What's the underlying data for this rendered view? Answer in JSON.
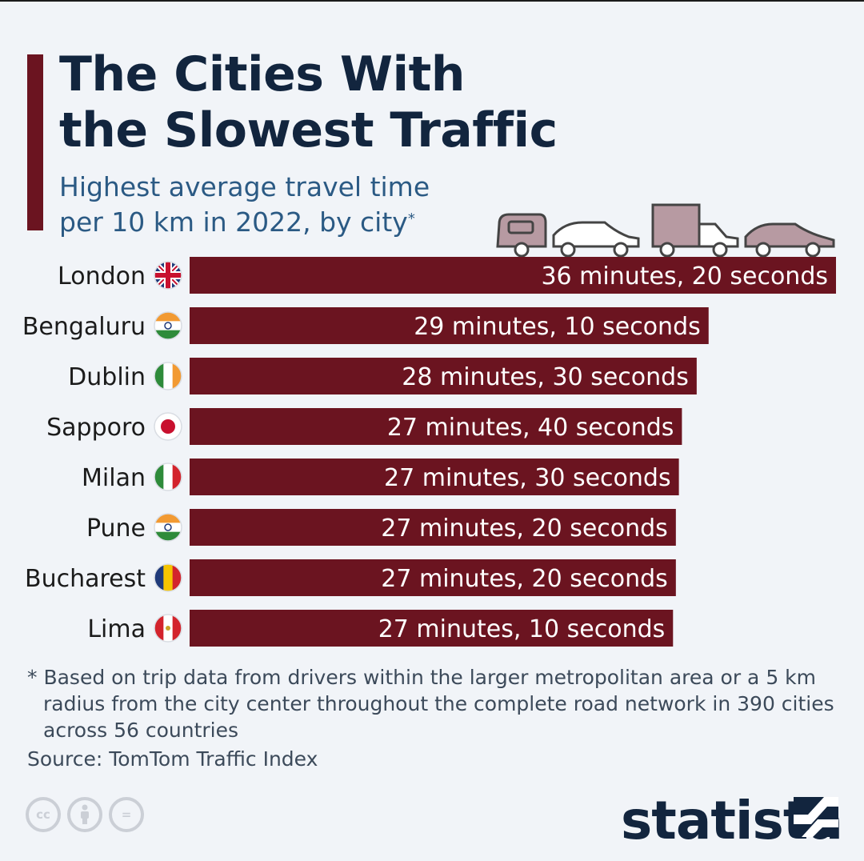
{
  "title": "The Cities With\nthe Slowest Traffic",
  "subtitle": "Highest average travel time per 10 km in 2022, by city",
  "subtitle_marker": "*",
  "chart_data": {
    "type": "bar",
    "orientation": "horizontal",
    "categories": [
      "London",
      "Bengaluru",
      "Dublin",
      "Sapporo",
      "Milan",
      "Pune",
      "Bucharest",
      "Lima"
    ],
    "values": [
      36.33,
      29.17,
      28.5,
      27.67,
      27.5,
      27.33,
      27.33,
      27.17
    ],
    "value_labels": [
      "36 minutes, 20 seconds",
      "29 minutes, 10 seconds",
      "28 minutes, 30 seconds",
      "27 minutes, 40 seconds",
      "27 minutes, 30 seconds",
      "27 minutes, 20 seconds",
      "27 minutes, 20 seconds",
      "27 minutes, 10 seconds"
    ],
    "flags": [
      "united-kingdom-flag-icon",
      "india-flag-icon",
      "ireland-flag-icon",
      "japan-flag-icon",
      "italy-flag-icon",
      "india-flag-icon",
      "romania-flag-icon",
      "peru-flag-icon"
    ],
    "xlim": [
      0,
      36.33
    ],
    "bar_color": "#6b1420",
    "label_color": "#ffffff"
  },
  "decoration": {
    "vehicles": [
      "camper-van-icon",
      "car-outline-icon",
      "truck-icon",
      "car-icon"
    ]
  },
  "footnote": "* Based on trip data from drivers within the larger metropolitan area or a 5 km radius from the city center throughout the complete road network in 390 cities across 56 countries",
  "source": "Source: TomTom Traffic Index",
  "license_icons": [
    "creative-commons-icon",
    "attribution-icon",
    "no-derivatives-icon"
  ],
  "license_labels": [
    "cc",
    "",
    "="
  ],
  "brand": "statista",
  "colors": {
    "background": "#f1f4f8",
    "title": "#12253e",
    "subtitle": "#2b5a84",
    "accent": "#6b1420"
  }
}
